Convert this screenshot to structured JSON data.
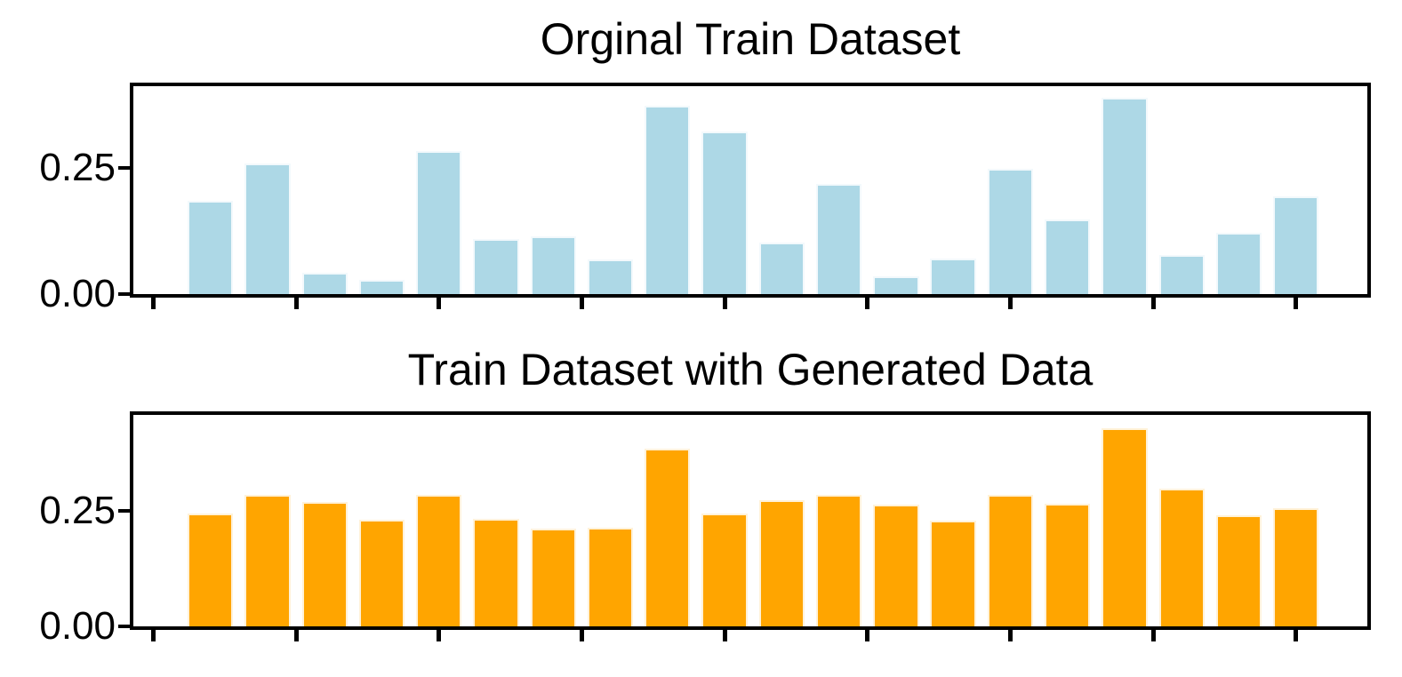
{
  "figure": {
    "background": "#ffffff",
    "spine_color": "#000000",
    "text_color": "#000000"
  },
  "chart_data": [
    {
      "type": "bar",
      "title": "Orginal Train Dataset",
      "bar_color": "#ADD8E6",
      "x": [
        1,
        2,
        3,
        4,
        5,
        6,
        7,
        8,
        9,
        10,
        11,
        12,
        13,
        14,
        15,
        16,
        17,
        18,
        19,
        20
      ],
      "values": [
        0.185,
        0.26,
        0.042,
        0.028,
        0.284,
        0.11,
        0.114,
        0.068,
        0.374,
        0.323,
        0.103,
        0.219,
        0.035,
        0.07,
        0.248,
        0.149,
        0.39,
        0.077,
        0.122,
        0.194
      ],
      "xlim": [
        -0.35,
        21.25
      ],
      "ylim": [
        0,
        0.413
      ],
      "xticks": [
        0,
        2.5,
        5,
        7.5,
        10,
        12.5,
        15,
        17.5,
        20
      ],
      "xtick_labels": [
        "",
        "",
        "",
        "",
        "",
        "",
        "",
        "",
        ""
      ],
      "yticks": [
        0,
        0.25
      ],
      "ytick_labels": [
        "0.00",
        "0.25"
      ],
      "bar_width": 0.8,
      "grid": false,
      "legend": null
    },
    {
      "type": "bar",
      "title": "Train Dataset with Generated Data",
      "bar_color": "#FFA500",
      "x": [
        1,
        2,
        3,
        4,
        5,
        6,
        7,
        8,
        9,
        10,
        11,
        12,
        13,
        14,
        15,
        16,
        17,
        18,
        19,
        20
      ],
      "values": [
        0.244,
        0.284,
        0.269,
        0.231,
        0.284,
        0.233,
        0.212,
        0.214,
        0.385,
        0.244,
        0.273,
        0.284,
        0.263,
        0.229,
        0.284,
        0.265,
        0.429,
        0.298,
        0.24,
        0.256
      ],
      "xlim": [
        -0.35,
        21.25
      ],
      "ylim": [
        0,
        0.458
      ],
      "xticks": [
        0,
        2.5,
        5,
        7.5,
        10,
        12.5,
        15,
        17.5,
        20
      ],
      "xtick_labels": [
        "",
        "",
        "",
        "",
        "",
        "",
        "",
        "",
        ""
      ],
      "yticks": [
        0,
        0.25
      ],
      "ytick_labels": [
        "0.00",
        "0.25"
      ],
      "bar_width": 0.8,
      "grid": false,
      "legend": null
    }
  ]
}
